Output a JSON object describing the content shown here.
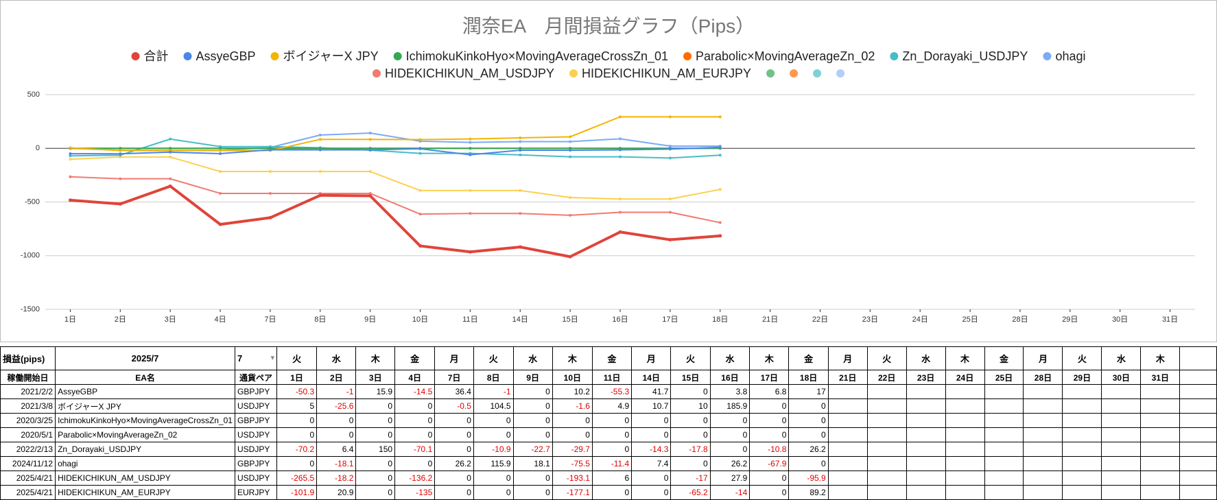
{
  "chart_data": {
    "type": "line",
    "title": "潤奈EA　月間損益グラフ（Pips）",
    "categories": [
      "1日",
      "2日",
      "3日",
      "4日",
      "7日",
      "8日",
      "9日",
      "10日",
      "11日",
      "14日",
      "15日",
      "16日",
      "17日",
      "18日",
      "21日",
      "22日",
      "23日",
      "24日",
      "25日",
      "28日",
      "29日",
      "30日",
      "31日"
    ],
    "series": [
      {
        "name": "合計",
        "color": "#e0443a",
        "values": [
          -483.0,
          -518.6,
          -352.7,
          -708.5,
          -646.4,
          -437.9,
          -442.5,
          -909.3,
          -965.1,
          -919.6,
          -1009.6,
          -779.8,
          -851.7,
          -815.2,
          null,
          null,
          null,
          null,
          null,
          null,
          null,
          null,
          null
        ]
      },
      {
        "name": "AssyeGBP",
        "color": "#4a86e8",
        "values": [
          -50.3,
          -51.3,
          -35.4,
          -49.9,
          -13.5,
          -14.5,
          -14.5,
          -4.3,
          -59.6,
          -17.9,
          -17.9,
          -14.1,
          -7.3,
          9.7,
          null,
          null,
          null,
          null,
          null,
          null,
          null,
          null,
          null
        ]
      },
      {
        "name": "ボイジャーX JPY",
        "color": "#f4b400",
        "values": [
          5,
          -20.6,
          -20.6,
          -20.6,
          -21.1,
          83.4,
          83.4,
          81.8,
          86.7,
          97.4,
          107.4,
          293.3,
          293.3,
          293.3,
          null,
          null,
          null,
          null,
          null,
          null,
          null,
          null,
          null
        ]
      },
      {
        "name": "IchimokuKinkoHyo×MovingAverageCrossZn_01",
        "color": "#34a853",
        "values": [
          0,
          0,
          0,
          0,
          0,
          0,
          0,
          0,
          0,
          0,
          0,
          0,
          0,
          0,
          null,
          null,
          null,
          null,
          null,
          null,
          null,
          null,
          null
        ]
      },
      {
        "name": "Parabolic×MovingAverageZn_02",
        "color": "#ff6d01",
        "values": [
          0,
          0,
          0,
          0,
          0,
          0,
          0,
          0,
          0,
          0,
          0,
          0,
          0,
          0,
          null,
          null,
          null,
          null,
          null,
          null,
          null,
          null,
          null
        ]
      },
      {
        "name": "Zn_Dorayaki_USDJPY",
        "color": "#46bdc6",
        "values": [
          -70.2,
          -63.8,
          86.2,
          16.1,
          16.1,
          5.2,
          -17.5,
          -47.2,
          -47.2,
          -61.5,
          -79.3,
          -79.3,
          -90.1,
          -63.9,
          null,
          null,
          null,
          null,
          null,
          null,
          null,
          null,
          null
        ]
      },
      {
        "name": "ohagi",
        "color": "#7baaf7",
        "values": [
          0,
          -18.1,
          -18.1,
          -18.1,
          8.1,
          124,
          142.1,
          66.6,
          55.2,
          62.6,
          62.6,
          88.8,
          20.9,
          20.9,
          null,
          null,
          null,
          null,
          null,
          null,
          null,
          null,
          null
        ]
      },
      {
        "name": "HIDEKICHIKUN_AM_USDJPY",
        "color": "#f07b72",
        "values": [
          -265.5,
          -283.7,
          -283.7,
          -419.9,
          -419.9,
          -419.9,
          -419.9,
          -613,
          -607,
          -607,
          -624,
          -596.1,
          -596.1,
          -692,
          null,
          null,
          null,
          null,
          null,
          null,
          null,
          null,
          null
        ]
      },
      {
        "name": "HIDEKICHIKUN_AM_EURJPY",
        "color": "#fcd04f",
        "values": [
          -101.9,
          -81,
          -81,
          -216,
          -216,
          -216,
          -216,
          -393.1,
          -393.1,
          -393.1,
          -458.3,
          -472.3,
          -472.3,
          -383.1,
          null,
          null,
          null,
          null,
          null,
          null,
          null,
          null,
          null
        ]
      },
      {
        "name": null,
        "color": "#71c287",
        "values": [
          null,
          null,
          null,
          null,
          null,
          null,
          null,
          null,
          null,
          null,
          null,
          null,
          null,
          null,
          null,
          null,
          null,
          null,
          null,
          null,
          null,
          null,
          null
        ]
      },
      {
        "name": null,
        "color": "#ff994d",
        "values": [
          null,
          null,
          null,
          null,
          null,
          null,
          null,
          null,
          null,
          null,
          null,
          null,
          null,
          null,
          null,
          null,
          null,
          null,
          null,
          null,
          null,
          null,
          null
        ]
      },
      {
        "name": null,
        "color": "#7ed1d7",
        "values": [
          null,
          null,
          null,
          null,
          null,
          null,
          null,
          null,
          null,
          null,
          null,
          null,
          null,
          null,
          null,
          null,
          null,
          null,
          null,
          null,
          null,
          null,
          null
        ]
      },
      {
        "name": null,
        "color": "#b3cefb",
        "values": [
          null,
          null,
          null,
          null,
          null,
          null,
          null,
          null,
          null,
          null,
          null,
          null,
          null,
          null,
          null,
          null,
          null,
          null,
          null,
          null,
          null,
          null,
          null
        ]
      }
    ],
    "ylim": [
      -1500,
      500
    ],
    "yticks": [
      -1500,
      -1000,
      -500,
      0,
      500
    ],
    "grid": true,
    "legend": "top"
  },
  "table": {
    "header": {
      "label": "損益(pips)",
      "month": "2025/7",
      "select": "7",
      "weekdays": [
        "火",
        "水",
        "木",
        "金",
        "月",
        "火",
        "水",
        "木",
        "金",
        "月",
        "火",
        "水",
        "木",
        "金",
        "月",
        "火",
        "水",
        "木",
        "金",
        "月",
        "火",
        "水",
        "木"
      ],
      "start": "稼働開始日",
      "name": "EA名",
      "pair": "通貨ペア"
    },
    "rows": [
      {
        "start": "2021/2/2",
        "name": "AssyeGBP",
        "pair": "GBPJPY",
        "values": [
          -50.3,
          -1,
          15.9,
          -14.5,
          36.4,
          -1,
          0,
          10.2,
          -55.3,
          41.7,
          0,
          3.8,
          6.8,
          17
        ]
      },
      {
        "start": "2021/3/8",
        "name": "ボイジャーX JPY",
        "pair": "USDJPY",
        "values": [
          5,
          -25.6,
          0,
          0,
          -0.5,
          104.5,
          0,
          -1.6,
          4.9,
          10.7,
          10,
          185.9,
          0,
          0
        ]
      },
      {
        "start": "2020/3/25",
        "name": "IchimokuKinkoHyo×MovingAverageCrossZn_01",
        "pair": "GBPJPY",
        "values": [
          0,
          0,
          0,
          0,
          0,
          0,
          0,
          0,
          0,
          0,
          0,
          0,
          0,
          0
        ]
      },
      {
        "start": "2020/5/1",
        "name": "Parabolic×MovingAverageZn_02",
        "pair": "USDJPY",
        "values": [
          0,
          0,
          0,
          0,
          0,
          0,
          0,
          0,
          0,
          0,
          0,
          0,
          0,
          0
        ]
      },
      {
        "start": "2022/2/13",
        "name": "Zn_Dorayaki_USDJPY",
        "pair": "USDJPY",
        "values": [
          -70.2,
          6.4,
          150,
          -70.1,
          0,
          -10.9,
          -22.7,
          -29.7,
          0,
          -14.3,
          -17.8,
          0,
          -10.8,
          26.2
        ]
      },
      {
        "start": "2024/11/12",
        "name": "ohagi",
        "pair": "GBPJPY",
        "values": [
          0,
          -18.1,
          0,
          0,
          26.2,
          115.9,
          18.1,
          -75.5,
          -11.4,
          7.4,
          0,
          26.2,
          -67.9,
          0
        ]
      },
      {
        "start": "2025/4/21",
        "name": "HIDEKICHIKUN_AM_USDJPY",
        "pair": "USDJPY",
        "values": [
          -265.5,
          -18.2,
          0,
          -136.2,
          0,
          0,
          0,
          -193.1,
          6,
          0,
          -17,
          27.9,
          0,
          -95.9
        ]
      },
      {
        "start": "2025/4/21",
        "name": "HIDEKICHIKUN_AM_EURJPY",
        "pair": "EURJPY",
        "values": [
          -101.9,
          20.9,
          0,
          -135,
          0,
          0,
          0,
          -177.1,
          0,
          0,
          -65.2,
          -14,
          0,
          89.2
        ]
      }
    ]
  }
}
